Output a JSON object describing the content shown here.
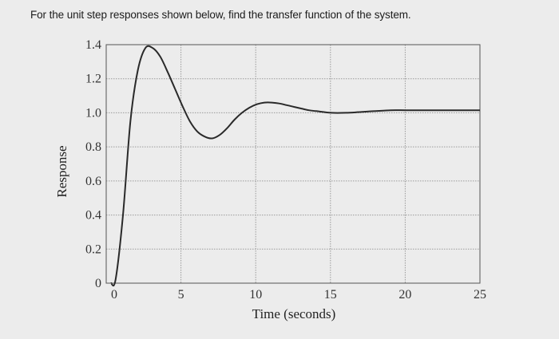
{
  "question": {
    "text": "For the unit step responses shown below, find the transfer function of the system."
  },
  "chart_data": {
    "type": "line",
    "title": "",
    "xlabel": "Time (seconds)",
    "ylabel": "Response",
    "xlim": [
      0,
      25
    ],
    "ylim": [
      0,
      1.4
    ],
    "x_ticks": [
      0,
      5,
      10,
      15,
      20,
      25
    ],
    "x_tick_labels": [
      "0",
      "5",
      "10",
      "15",
      "20",
      "25"
    ],
    "y_ticks": [
      0,
      0.2,
      0.4,
      0.6,
      0.8,
      1.0,
      1.2,
      1.4
    ],
    "y_tick_labels": [
      "0",
      "0.2",
      "0.4",
      "0.6",
      "0.8",
      "1.0",
      "1.2",
      "1.4"
    ],
    "grid": true,
    "series": [
      {
        "color": "#2a2a2a",
        "x": [
          0,
          0.5,
          1.0,
          1.5,
          2.0,
          2.5,
          3.0,
          3.5,
          4.0,
          4.5,
          5.0,
          5.5,
          6.0,
          6.5,
          7.0,
          7.5,
          8.0,
          8.5,
          9.0,
          9.5,
          10.0,
          10.5,
          11.0,
          11.5,
          12.0,
          12.5,
          13.0,
          13.5,
          14.0,
          15.0,
          16.0,
          17.0,
          18.0,
          19.0,
          20.0,
          21.0,
          22.0,
          23.0,
          24.0,
          25.0
        ],
        "y": [
          0,
          0.02,
          0.4,
          0.95,
          1.25,
          1.38,
          1.38,
          1.33,
          1.24,
          1.14,
          1.04,
          0.95,
          0.89,
          0.86,
          0.85,
          0.87,
          0.91,
          0.96,
          1.0,
          1.03,
          1.05,
          1.06,
          1.06,
          1.055,
          1.045,
          1.035,
          1.025,
          1.015,
          1.01,
          1.0,
          1.0,
          1.005,
          1.01,
          1.015,
          1.015,
          1.015,
          1.015,
          1.015,
          1.015,
          1.015
        ]
      }
    ]
  }
}
